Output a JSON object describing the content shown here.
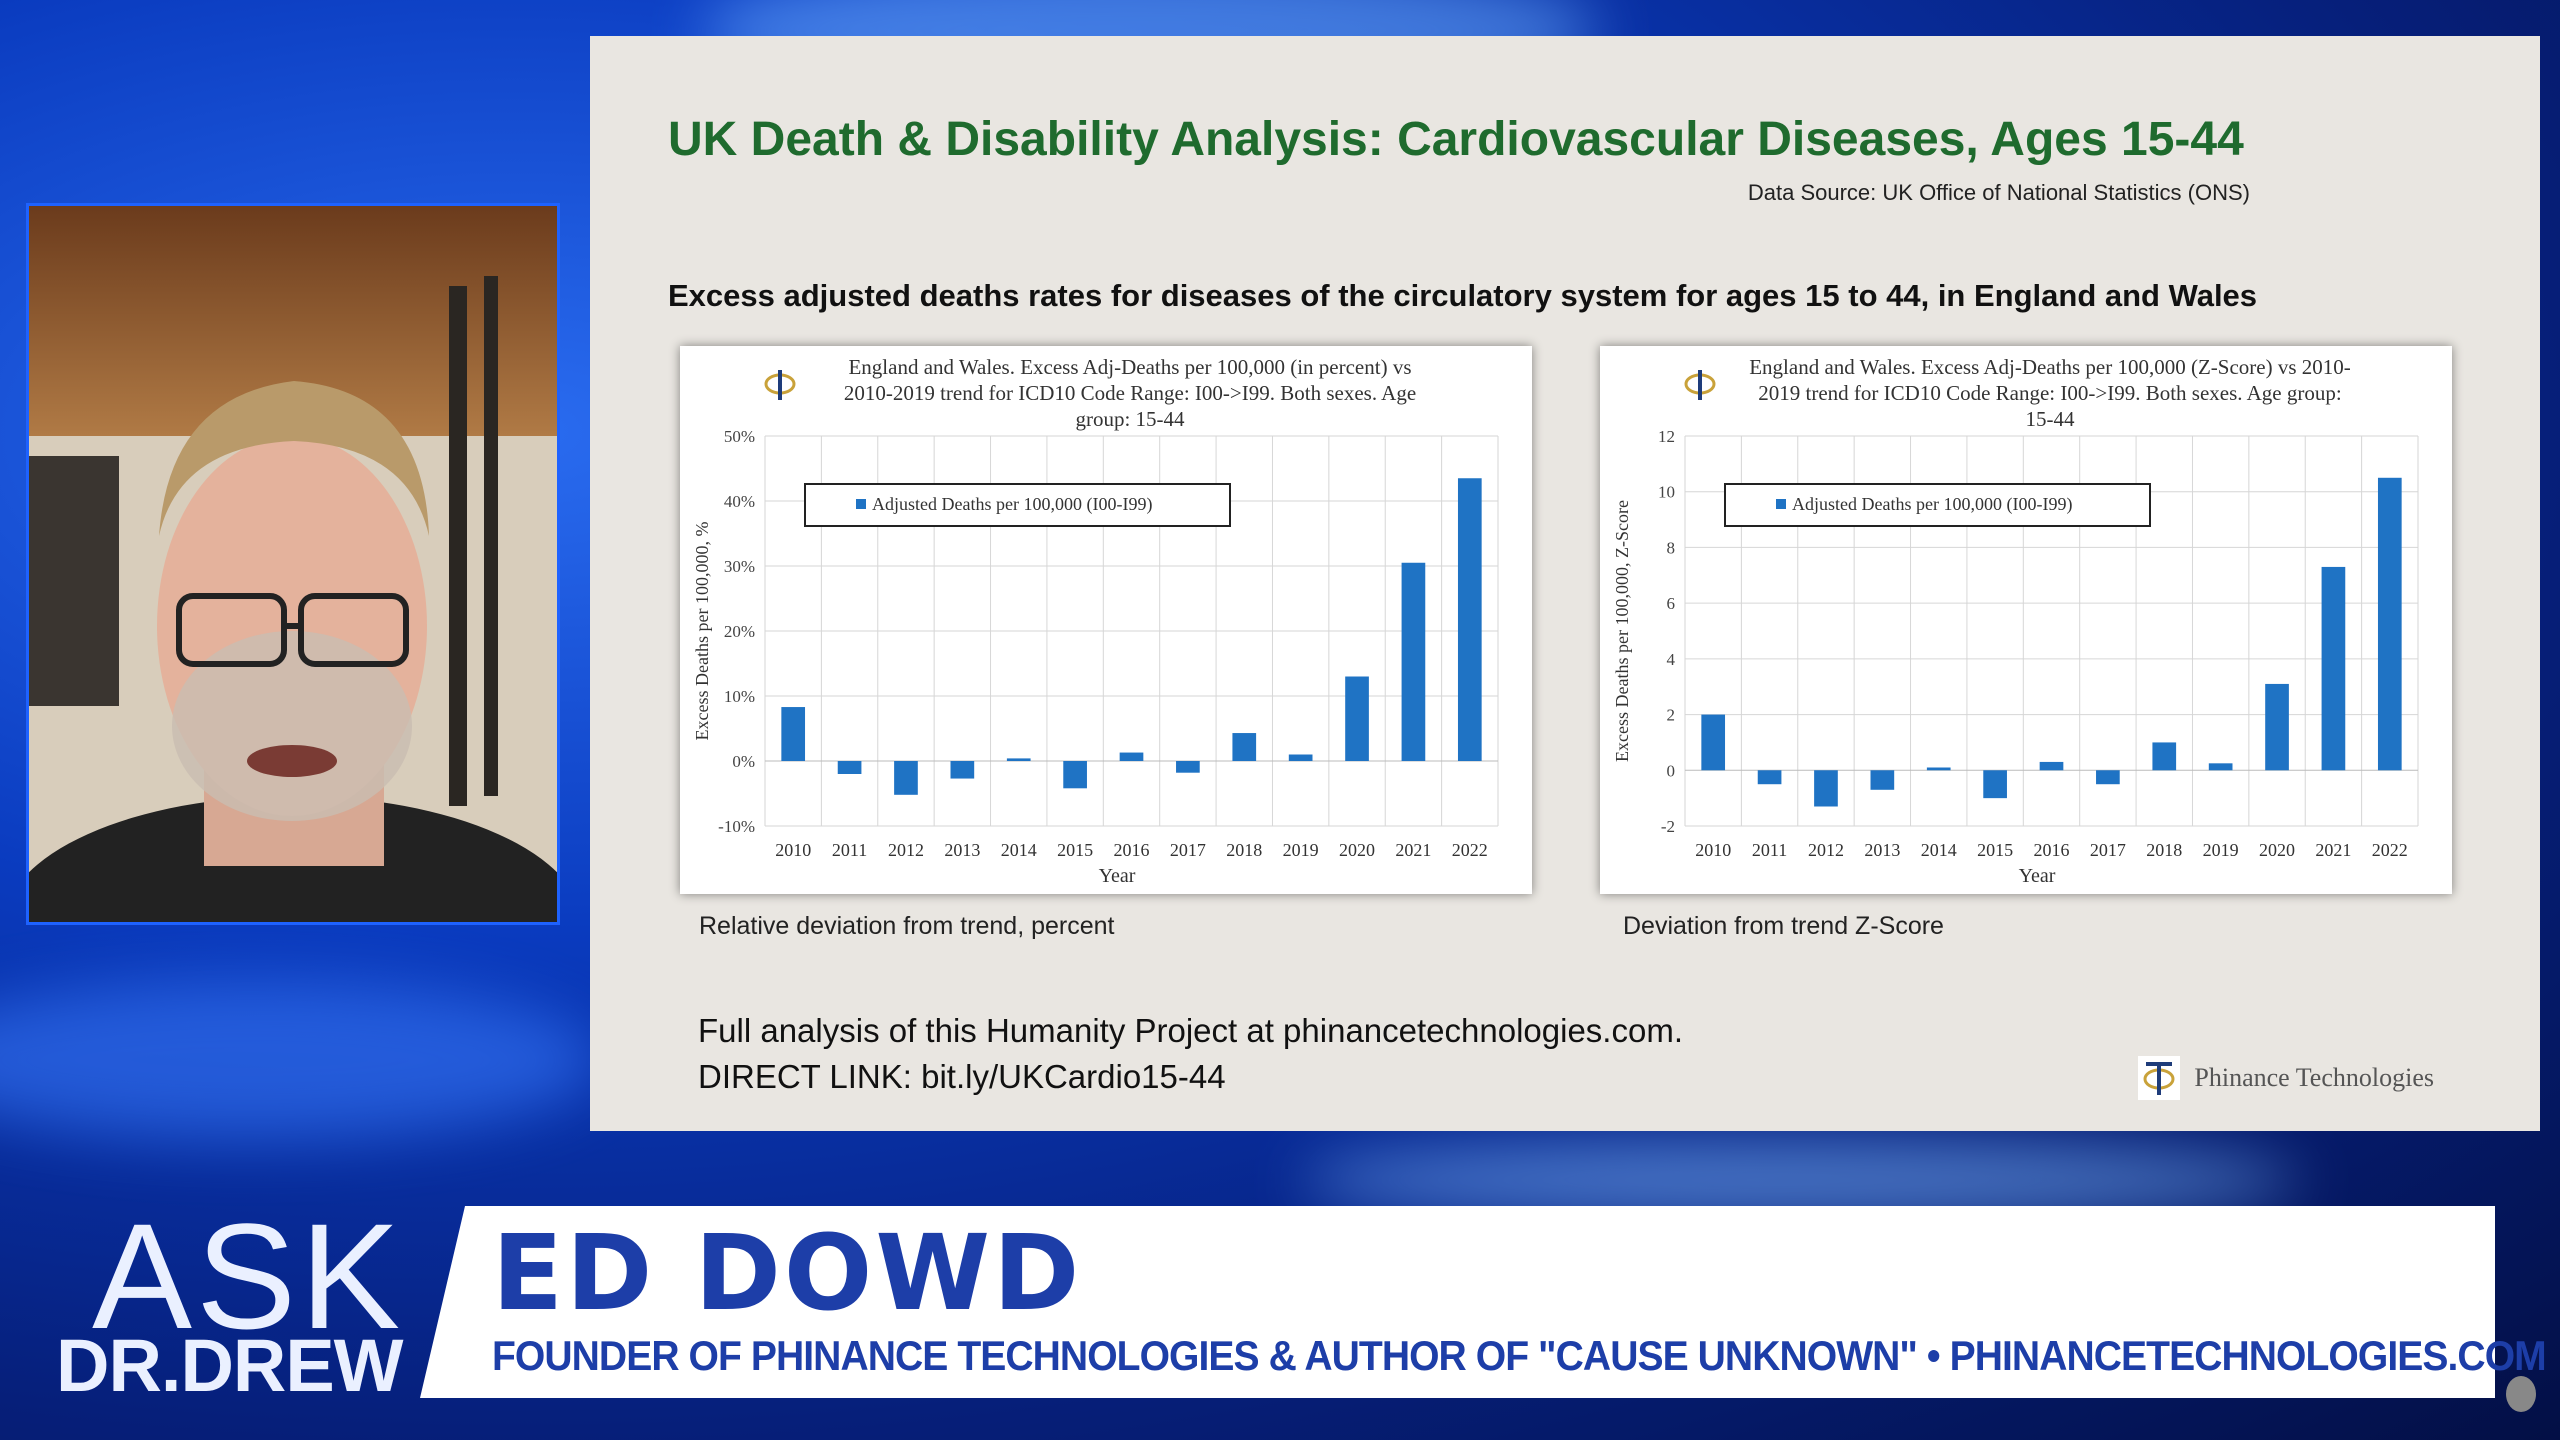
{
  "slide": {
    "title": "UK Death & Disability Analysis: Cardiovascular Diseases, Ages 15-44",
    "source": "Data Source: UK Office of National Statistics (ONS)",
    "subtitle": "Excess adjusted deaths rates for diseases of the circulatory system for ages 15 to 44, in England and Wales",
    "caption_left": "Relative deviation from trend, percent",
    "caption_right": "Deviation from trend Z-Score",
    "footer_line1": "Full analysis of this Humanity Project at phinancetechnologies.com.",
    "footer_line2": "DIRECT LINK: bit.ly/UKCardio15-44",
    "brand": "Phinance Technologies"
  },
  "lower_third": {
    "show_ask": "ASK",
    "show_dr": "DR.DREW",
    "name": "ED DOWD",
    "subtitle": "FOUNDER OF PHINANCE TECHNOLOGIES & AUTHOR OF \"CAUSE UNKNOWN\" • PHINANCETECHNOLOGIES.COM"
  },
  "colors": {
    "bar": "#1f73c4",
    "title_green": "#1f6b2e",
    "lower_third_text": "#1d3ea8"
  },
  "chart_data": [
    {
      "type": "bar",
      "title": "England and Wales. Excess Adj-Deaths per 100,000 (in percent) vs 2010-2019 trend for ICD10 Code Range: I00->I99. Both sexes. Age group: 15-44",
      "title_lines": [
        "England and Wales. Excess Adj-Deaths per 100,000 (in percent) vs",
        "2010-2019 trend for ICD10 Code Range: I00->I99. Both sexes. Age",
        "group: 15-44"
      ],
      "legend": "Adjusted Deaths per 100,000 (I00-I99)",
      "xlabel": "Year",
      "ylabel": "Excess Deaths per 100,000, %",
      "categories": [
        "2010",
        "2011",
        "2012",
        "2013",
        "2014",
        "2015",
        "2016",
        "2017",
        "2018",
        "2019",
        "2020",
        "2021",
        "2022"
      ],
      "values": [
        8.3,
        -2.0,
        -5.2,
        -2.7,
        0.4,
        -4.2,
        1.3,
        -1.8,
        4.3,
        1.0,
        13.0,
        30.5,
        43.5
      ],
      "ylim": [
        -10,
        50
      ],
      "yticks": [
        -10,
        0,
        10,
        20,
        30,
        40,
        50
      ],
      "ytick_labels": [
        "-10%",
        "0%",
        "10%",
        "20%",
        "30%",
        "40%",
        "50%"
      ]
    },
    {
      "type": "bar",
      "title": "England and Wales. Excess Adj-Deaths per 100,000 (Z-Score) vs 2010-2019 trend for ICD10 Code Range: I00->I99. Both sexes. Age group: 15-44",
      "title_lines": [
        "England and Wales. Excess Adj-Deaths per 100,000 (Z-Score) vs 2010-",
        "2019 trend for ICD10 Code Range: I00->I99. Both sexes. Age group:",
        "15-44"
      ],
      "legend": "Adjusted Deaths per 100,000 (I00-I99)",
      "xlabel": "Year",
      "ylabel": "Excess Deaths per 100,000, Z-Score",
      "categories": [
        "2010",
        "2011",
        "2012",
        "2013",
        "2014",
        "2015",
        "2016",
        "2017",
        "2018",
        "2019",
        "2020",
        "2021",
        "2022"
      ],
      "values": [
        2.0,
        -0.5,
        -1.3,
        -0.7,
        0.1,
        -1.0,
        0.3,
        -0.5,
        1.0,
        0.25,
        3.1,
        7.3,
        10.5
      ],
      "ylim": [
        -2,
        12
      ],
      "yticks": [
        -2,
        0,
        2,
        4,
        6,
        8,
        10,
        12
      ],
      "ytick_labels": [
        "-2",
        "0",
        "2",
        "4",
        "6",
        "8",
        "10",
        "12"
      ]
    }
  ]
}
